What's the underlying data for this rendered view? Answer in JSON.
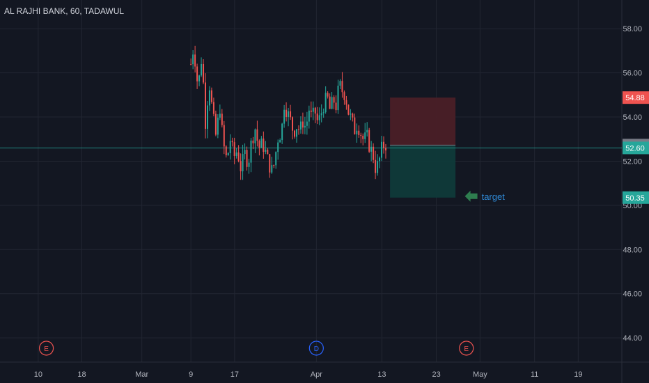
{
  "header": {
    "title": "AL RAJHI BANK, 60, TADAWUL"
  },
  "colors": {
    "background": "#131722",
    "grid": "#222632",
    "up": "#26a69a",
    "down": "#ef5350",
    "axis_text": "#b2b5be",
    "stop_zone": "#4a1f27",
    "target_zone": "#0f3a3a",
    "current_line": "#26a69a",
    "annotation": "#2f8ad7",
    "arrow": "#2e7d4f"
  },
  "chart_data": {
    "type": "candlestick",
    "title": "AL RAJHI BANK, 60, TADAWUL",
    "ylim": [
      42.9,
      59.3
    ],
    "y_ticks": [
      44.0,
      46.0,
      48.0,
      50.0,
      52.0,
      54.0,
      56.0,
      58.0
    ],
    "y_tick_labels": [
      "44.00",
      "46.00",
      "48.00",
      "50.00",
      "52.00",
      "54.00",
      "56.00",
      "58.00"
    ],
    "x_ticks": [
      {
        "label": "10",
        "day": 10
      },
      {
        "label": "18",
        "day": 18
      },
      {
        "label": "Mar",
        "day": 29
      },
      {
        "label": "9",
        "day": 38
      },
      {
        "label": "17",
        "day": 46
      },
      {
        "label": "Apr",
        "day": 61
      },
      {
        "label": "13",
        "day": 73
      },
      {
        "label": "23",
        "day": 83
      },
      {
        "label": "May",
        "day": 91
      },
      {
        "label": "11",
        "day": 101
      },
      {
        "label": "19",
        "day": 109
      }
    ],
    "xlim": [
      3,
      117
    ],
    "series_path": [
      [
        38.0,
        56.4
      ],
      [
        38.5,
        57.2
      ],
      [
        39.3,
        55.3
      ],
      [
        40.0,
        56.8
      ],
      [
        40.7,
        53.6
      ],
      [
        41.3,
        55.7
      ],
      [
        42.0,
        54.1
      ],
      [
        42.6,
        53.1
      ],
      [
        43.3,
        54.5
      ],
      [
        43.9,
        52.8
      ],
      [
        44.6,
        52.0
      ],
      [
        45.2,
        53.0
      ],
      [
        45.9,
        52.2
      ],
      [
        46.5,
        52.5
      ],
      [
        47.2,
        51.6
      ],
      [
        47.8,
        52.4
      ],
      [
        48.5,
        51.9
      ],
      [
        49.1,
        52.9
      ],
      [
        49.8,
        53.5
      ],
      [
        50.4,
        52.6
      ],
      [
        51.1,
        52.8
      ],
      [
        51.7,
        52.4
      ],
      [
        52.4,
        51.8
      ],
      [
        53.0,
        51.5
      ],
      [
        53.5,
        52.3
      ],
      [
        54.0,
        53.1
      ],
      [
        54.6,
        53.3
      ],
      [
        55.1,
        54.6
      ],
      [
        55.7,
        54.2
      ],
      [
        56.3,
        53.8
      ],
      [
        56.8,
        53.3
      ],
      [
        57.4,
        53.6
      ],
      [
        58.0,
        53.4
      ],
      [
        58.5,
        53.8
      ],
      [
        59.1,
        53.5
      ],
      [
        59.6,
        54.4
      ],
      [
        60.2,
        53.9
      ],
      [
        60.7,
        54.3
      ],
      [
        61.3,
        53.7
      ],
      [
        61.8,
        54.1
      ],
      [
        62.4,
        54.6
      ],
      [
        63.0,
        54.9
      ],
      [
        63.5,
        54.3
      ],
      [
        64.1,
        54.8
      ],
      [
        64.6,
        54.5
      ],
      [
        65.2,
        55.5
      ],
      [
        65.7,
        55.2
      ],
      [
        66.3,
        55.0
      ],
      [
        66.9,
        54.2
      ],
      [
        67.4,
        53.9
      ],
      [
        68.0,
        53.4
      ],
      [
        68.5,
        53.7
      ],
      [
        69.1,
        53.3
      ],
      [
        69.7,
        52.9
      ],
      [
        70.2,
        53.2
      ],
      [
        70.8,
        52.6
      ],
      [
        71.3,
        52.4
      ],
      [
        71.9,
        51.6
      ],
      [
        72.5,
        52.0
      ],
      [
        73.0,
        52.6
      ],
      [
        73.6,
        52.8
      ],
      [
        74.1,
        52.6
      ]
    ],
    "position": {
      "x_start_day": 74.5,
      "x_end_day": 86.5,
      "entry": 52.73,
      "stop": 54.88,
      "target": 50.35
    },
    "current_price": 52.6,
    "price_labels": [
      {
        "value": 54.88,
        "text": "54.88",
        "color": "#ef5350"
      },
      {
        "value": 52.73,
        "text": "52.73",
        "color": "#787b86"
      },
      {
        "value": 52.6,
        "text": "52.60",
        "color": "#26a69a"
      },
      {
        "value": 50.35,
        "text": "50.35",
        "color": "#26a69a"
      }
    ],
    "events": [
      {
        "day": 11.5,
        "label": "E",
        "color": "#ef5350"
      },
      {
        "day": 61.0,
        "label": "D",
        "color": "#2962ff"
      },
      {
        "day": 88.5,
        "label": "E",
        "color": "#ef5350"
      }
    ],
    "annotation": {
      "text": "target",
      "day": 89.5,
      "value": 50.35
    }
  }
}
